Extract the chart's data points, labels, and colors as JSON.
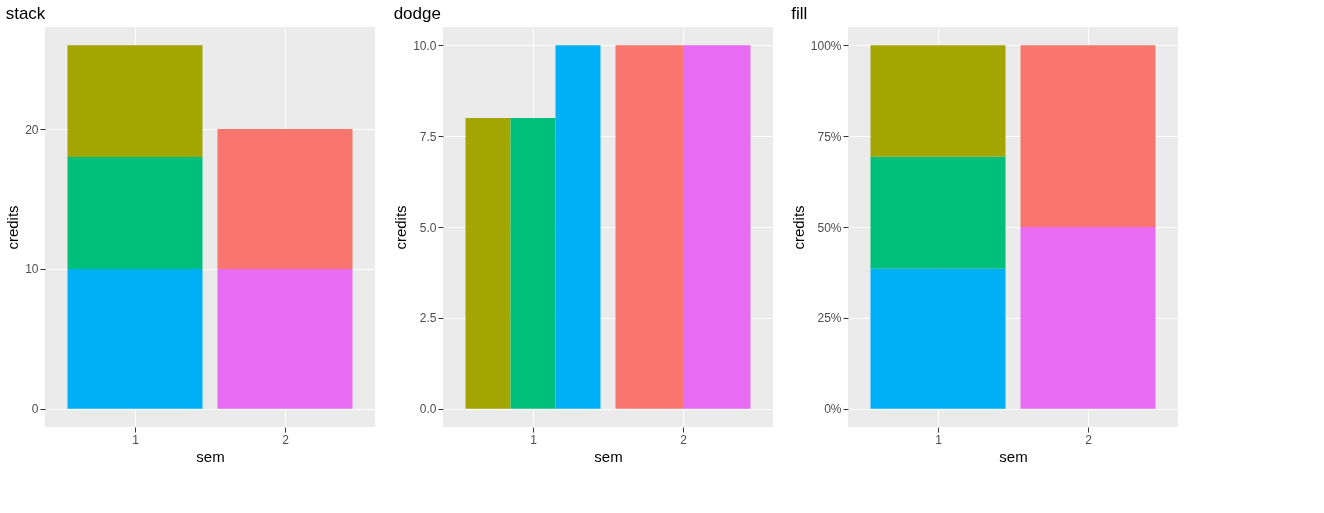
{
  "chart_data": [
    {
      "type": "bar",
      "title": "stack",
      "xlabel": "sem",
      "ylabel": "credits",
      "categories": [
        "1",
        "2"
      ],
      "stacked": true,
      "grid": true,
      "series": [
        {
          "color": "#00b0f6",
          "values": [
            10,
            null
          ]
        },
        {
          "color": "#e76bf3",
          "values": [
            null,
            10
          ]
        },
        {
          "color": "#00bf7d",
          "values": [
            8,
            null
          ]
        },
        {
          "color": "#f8766d",
          "values": [
            null,
            10
          ]
        },
        {
          "color": "#a3a500",
          "values": [
            8,
            null
          ]
        }
      ],
      "ylim": [
        -1.3,
        27.3
      ],
      "yticks": [
        0,
        10,
        20
      ]
    },
    {
      "type": "bar",
      "title": "dodge",
      "xlabel": "sem",
      "ylabel": "credits",
      "categories": [
        "1",
        "2"
      ],
      "stacked": false,
      "grid": true,
      "series": [
        {
          "color": "#00b0f6",
          "values": [
            10,
            null
          ]
        },
        {
          "color": "#e76bf3",
          "values": [
            null,
            10
          ]
        },
        {
          "color": "#00bf7d",
          "values": [
            8,
            null
          ]
        },
        {
          "color": "#f8766d",
          "values": [
            null,
            10
          ]
        },
        {
          "color": "#a3a500",
          "values": [
            8,
            null
          ]
        }
      ],
      "ylim": [
        -0.5,
        10.5
      ],
      "yticks": [
        {
          "value": 0,
          "label": "0.0"
        },
        2.5,
        {
          "value": 5,
          "label": "5.0"
        },
        7.5,
        {
          "value": 10,
          "label": "10.0"
        }
      ]
    },
    {
      "type": "bar",
      "title": "fill",
      "xlabel": "sem",
      "ylabel": "credits",
      "categories": [
        "1",
        "2"
      ],
      "stacked": true,
      "grid": true,
      "series": [
        {
          "color": "#00b0f6",
          "values": [
            38.5,
            null
          ]
        },
        {
          "color": "#e76bf3",
          "values": [
            null,
            50
          ]
        },
        {
          "color": "#00bf7d",
          "values": [
            30.8,
            null
          ]
        },
        {
          "color": "#f8766d",
          "values": [
            null,
            50
          ]
        },
        {
          "color": "#a3a500",
          "values": [
            30.7,
            null
          ]
        }
      ],
      "ylim": [
        -5,
        105
      ],
      "yticks": [
        {
          "value": 0,
          "label": "0%"
        },
        {
          "value": 25,
          "label": "25%"
        },
        {
          "value": 50,
          "label": "50%"
        },
        {
          "value": 75,
          "label": "75%"
        },
        {
          "value": 100,
          "label": "100%"
        }
      ]
    }
  ]
}
